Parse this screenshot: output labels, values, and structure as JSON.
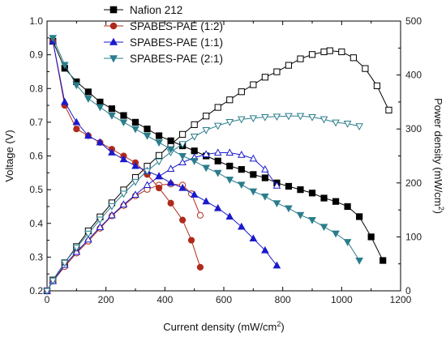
{
  "chart_data": {
    "type": "line",
    "title": "",
    "xlabel": "Current density (mW/cm",
    "xlabel_sup": "2",
    "xlabel_close": ")",
    "ylabel_left": "Voltage (V)",
    "ylabel_right": "Power density  (mW/cm",
    "ylabel_right_sup": "2",
    "ylabel_right_close": ")",
    "xlim": [
      0,
      1200
    ],
    "ylim_left": [
      0.2,
      1.0
    ],
    "ylim_right": [
      0,
      500
    ],
    "x_ticks": [
      "0",
      "200",
      "400",
      "600",
      "800",
      "1000",
      "1200"
    ],
    "y_left_ticks": [
      "0.2",
      "0.3",
      "0.4",
      "0.5",
      "0.6",
      "0.7",
      "0.8",
      "0.9",
      "1.0"
    ],
    "y_right_ticks": [
      "0",
      "100",
      "200",
      "300",
      "400",
      "500"
    ],
    "grid": false,
    "legend_position": "top-left",
    "series": [
      {
        "name": "Nafion 212",
        "color": "#000000",
        "marker": "square",
        "voltage": {
          "x": [
            20,
            60,
            100,
            140,
            180,
            220,
            260,
            300,
            340,
            380,
            420,
            460,
            500,
            540,
            580,
            620,
            660,
            700,
            740,
            780,
            820,
            860,
            900,
            940,
            980,
            1020,
            1060,
            1100,
            1140
          ],
          "y": [
            0.94,
            0.86,
            0.82,
            0.79,
            0.76,
            0.74,
            0.72,
            0.7,
            0.68,
            0.66,
            0.645,
            0.63,
            0.615,
            0.6,
            0.585,
            0.57,
            0.56,
            0.545,
            0.535,
            0.52,
            0.51,
            0.5,
            0.49,
            0.475,
            0.465,
            0.45,
            0.42,
            0.36,
            0.29
          ]
        },
        "power": {
          "x": [
            0,
            20,
            60,
            100,
            140,
            180,
            220,
            260,
            300,
            340,
            380,
            420,
            460,
            500,
            540,
            580,
            620,
            660,
            700,
            740,
            780,
            820,
            860,
            900,
            940,
            960,
            1000,
            1040,
            1080,
            1120,
            1160
          ],
          "y": [
            0,
            20,
            52,
            82,
            111,
            137,
            163,
            187,
            210,
            231,
            251,
            271,
            290,
            308,
            324,
            340,
            354,
            369,
            382,
            396,
            406,
            418,
            430,
            438,
            443,
            445,
            443,
            432,
            412,
            380,
            335
          ]
        }
      },
      {
        "name": "SPABES-PAE (1:2)",
        "color": "#b02a1c",
        "marker": "circle",
        "voltage": {
          "x": [
            20,
            60,
            100,
            140,
            180,
            220,
            260,
            300,
            340,
            380,
            420,
            460,
            490,
            520
          ],
          "y": [
            0.94,
            0.75,
            0.68,
            0.66,
            0.64,
            0.62,
            0.6,
            0.58,
            0.545,
            0.505,
            0.46,
            0.41,
            0.35,
            0.27
          ]
        },
        "power": {
          "x": [
            0,
            20,
            60,
            100,
            140,
            180,
            220,
            260,
            300,
            340,
            380,
            420,
            460,
            490,
            520
          ],
          "y": [
            0,
            18,
            45,
            70,
            92,
            116,
            139,
            158,
            176,
            188,
            196,
            198,
            196,
            180,
            140
          ]
        }
      },
      {
        "name": "SPABES-PAE (1:1)",
        "color": "#1a1acc",
        "marker": "triangle-up",
        "voltage": {
          "x": [
            20,
            60,
            100,
            140,
            180,
            220,
            260,
            300,
            340,
            380,
            420,
            460,
            500,
            540,
            580,
            620,
            660,
            700,
            740,
            780
          ],
          "y": [
            0.94,
            0.76,
            0.7,
            0.66,
            0.64,
            0.61,
            0.59,
            0.57,
            0.555,
            0.54,
            0.52,
            0.505,
            0.485,
            0.465,
            0.445,
            0.42,
            0.39,
            0.355,
            0.32,
            0.275
          ]
        },
        "power": {
          "x": [
            0,
            20,
            60,
            100,
            140,
            180,
            220,
            260,
            300,
            340,
            380,
            420,
            460,
            500,
            540,
            580,
            620,
            660,
            700,
            740,
            780
          ],
          "y": [
            0,
            18,
            48,
            72,
            95,
            118,
            140,
            160,
            178,
            196,
            212,
            226,
            238,
            247,
            253,
            256,
            256,
            252,
            245,
            225,
            195
          ]
        }
      },
      {
        "name": "SPABES-PAE (2:1)",
        "color": "#2a7d8c",
        "marker": "triangle-down",
        "voltage": {
          "x": [
            20,
            60,
            100,
            140,
            180,
            220,
            260,
            300,
            340,
            380,
            420,
            460,
            500,
            540,
            580,
            620,
            660,
            700,
            740,
            780,
            820,
            860,
            900,
            940,
            980,
            1020,
            1060
          ],
          "y": [
            0.95,
            0.87,
            0.81,
            0.77,
            0.745,
            0.72,
            0.7,
            0.68,
            0.66,
            0.64,
            0.62,
            0.6,
            0.585,
            0.565,
            0.55,
            0.53,
            0.515,
            0.495,
            0.48,
            0.46,
            0.445,
            0.425,
            0.41,
            0.39,
            0.37,
            0.345,
            0.29
          ]
        },
        "power": {
          "x": [
            0,
            20,
            60,
            100,
            140,
            180,
            220,
            260,
            300,
            340,
            380,
            420,
            460,
            500,
            540,
            580,
            620,
            660,
            700,
            740,
            780,
            820,
            860,
            900,
            940,
            980,
            1020,
            1060
          ],
          "y": [
            0,
            19,
            52,
            80,
            106,
            132,
            157,
            180,
            202,
            222,
            240,
            257,
            272,
            286,
            298,
            306,
            313,
            318,
            320,
            322,
            323,
            324,
            324,
            322,
            318,
            312,
            310,
            305
          ]
        }
      }
    ]
  }
}
